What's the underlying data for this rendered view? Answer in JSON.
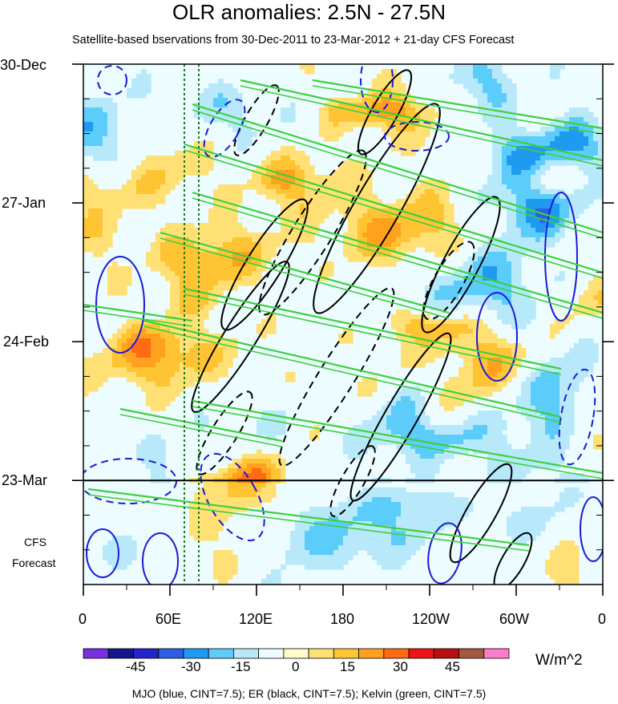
{
  "chart_data": {
    "type": "heatmap",
    "title": "OLR anomalies: 2.5N - 27.5N",
    "subtitle": "Satellite-based bservations from 30-Dec-2011 to 23-Mar-2012 + 21-day CFS Forecast",
    "y_ticks": [
      "30-Dec",
      "27-Jan",
      "24-Feb",
      "23-Mar"
    ],
    "forecast_label": [
      "CFS",
      "Forecast"
    ],
    "x_ticks": [
      "0",
      "60E",
      "120E",
      "180",
      "120W",
      "60W",
      "0"
    ],
    "x_tick_lon": [
      0,
      60,
      120,
      180,
      240,
      300,
      360
    ],
    "xlim": [
      0,
      360
    ],
    "y_days": [
      0,
      28,
      56,
      84
    ],
    "ylim_days": [
      0,
      105
    ],
    "colorbar": {
      "ticks": [
        "-45",
        "-30",
        "-15",
        "0",
        "15",
        "30",
        "45"
      ],
      "units": "W/m^2",
      "colors": [
        "#7a2fe0",
        "#18168c",
        "#2424c8",
        "#2a5fe6",
        "#1e9bf0",
        "#5ccdfa",
        "#b8e9fb",
        "#ecfcff",
        "#fffbcc",
        "#ffe074",
        "#ffc434",
        "#ffa11e",
        "#ff6a12",
        "#f01414",
        "#b8100e",
        "#a45a3e",
        "#ff7ccc"
      ]
    },
    "caption": "MJO (blue, CINT=7.5); ER (black, CINT=7.5); Kelvin (green, CINT=7.5)",
    "overlays": {
      "mjo_color": "#1a1ad6",
      "er_color": "#000000",
      "kelvin_color": "#3bd13b",
      "marker_lon": [
        70,
        80
      ],
      "marker_color": "#1c7a1c"
    }
  }
}
